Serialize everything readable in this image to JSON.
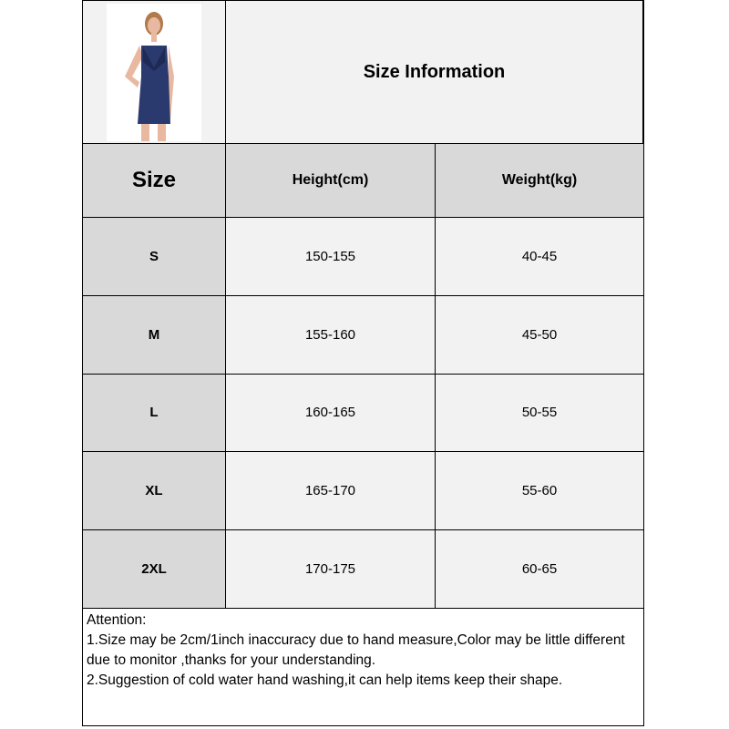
{
  "title": "Size Information",
  "headers": {
    "size": "Size",
    "height": "Height(cm)",
    "weight": "Weight(kg)"
  },
  "rows": [
    {
      "size": "S",
      "height": "150-155",
      "weight": "40-45"
    },
    {
      "size": "M",
      "height": "155-160",
      "weight": "45-50"
    },
    {
      "size": "L",
      "height": "160-165",
      "weight": "50-55"
    },
    {
      "size": "XL",
      "height": "165-170",
      "weight": "55-60"
    },
    {
      "size": "2XL",
      "height": "170-175",
      "weight": "60-65"
    }
  ],
  "attention": {
    "label": "Attention:",
    "line1": "1.Size may be 2cm/1inch inaccuracy due to hand measure,Color may be little different due to monitor ,thanks for your understanding.",
    "line2": "2.Suggestion of cold water hand washing,it can help items keep their shape."
  },
  "colors": {
    "header_bg": "#d9d9d9",
    "cell_bg": "#f2f2f2",
    "dress": "#2b3a6e"
  }
}
